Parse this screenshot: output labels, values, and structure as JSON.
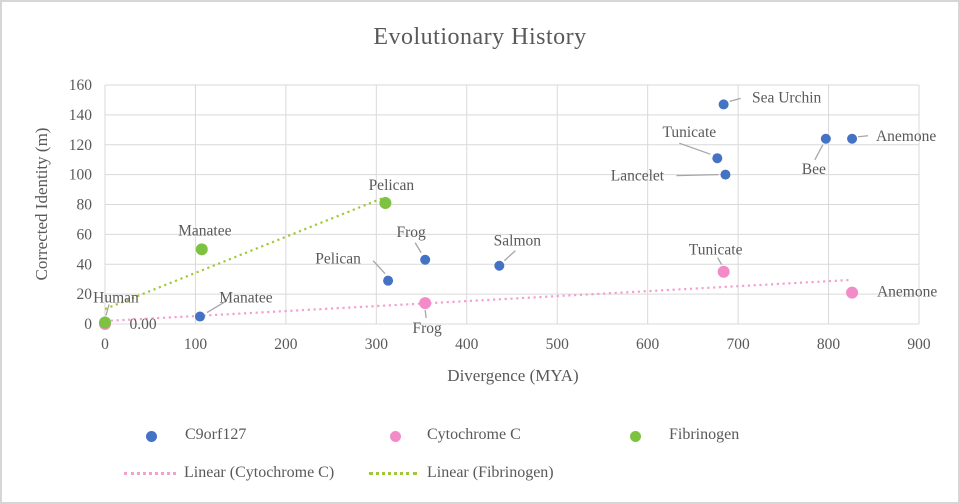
{
  "styles": {
    "text_color": "#595959",
    "grid_color": "#d9d9d9",
    "leader_color": "#a6a6a6",
    "background": "#ffffff",
    "frame_border": "#d6d6d6"
  },
  "chart_data": {
    "type": "scatter",
    "title": "Evolutionary History",
    "xlabel": "Divergence (MYA)",
    "ylabel": "Corrected Identity (m)",
    "xlim": [
      0,
      900
    ],
    "ylim": [
      0,
      160
    ],
    "xticks": [
      0,
      100,
      200,
      300,
      400,
      500,
      600,
      700,
      800,
      900
    ],
    "yticks": [
      0,
      20,
      40,
      60,
      80,
      100,
      120,
      140,
      160
    ],
    "grid": true,
    "legend_position": "bottom",
    "series": [
      {
        "name": "C9orf127",
        "color": "#4472c4",
        "marker_radius": 5,
        "points": [
          {
            "x": 105,
            "y": 5,
            "label": "Manatee",
            "label_dx": 46,
            "label_dy": -19,
            "lead": [
              7,
              -4,
              27,
              -16
            ]
          },
          {
            "x": 313,
            "y": 29,
            "label": "Pelican",
            "label_dx": -50,
            "label_dy": -22,
            "lead": [
              -15,
              -20,
              -3,
              -7
            ]
          },
          {
            "x": 354,
            "y": 43,
            "label": "Frog",
            "label_dx": -14,
            "label_dy": -28,
            "lead": [
              -10,
              -17,
              -4,
              -7
            ]
          },
          {
            "x": 436,
            "y": 39,
            "label": "Salmon",
            "label_dx": 18,
            "label_dy": -25,
            "lead": [
              5,
              -5,
              16,
              -15
            ]
          },
          {
            "x": 686,
            "y": 100,
            "label": "Lancelet",
            "label_dx": -88,
            "label_dy": 1,
            "lead": [
              -7,
              0,
              -49,
              1
            ]
          },
          {
            "x": 677,
            "y": 111,
            "label": "Tunicate",
            "label_dx": -28,
            "label_dy": -26,
            "lead": [
              -7,
              -4,
              -38,
              -15
            ]
          },
          {
            "x": 684,
            "y": 147,
            "label": "Sea Urchin",
            "label_dx": 63,
            "label_dy": -7,
            "lead": [
              6,
              -3,
              17,
              -6
            ]
          },
          {
            "x": 797,
            "y": 124,
            "label": "Bee",
            "label_dx": -12,
            "label_dy": 30,
            "lead": [
              -3,
              6,
              -11,
              21
            ]
          },
          {
            "x": 826,
            "y": 124,
            "label": "Anemone",
            "label_dx": 54,
            "label_dy": -3,
            "lead": [
              6,
              -2,
              16,
              -3
            ]
          }
        ]
      },
      {
        "name": "Cytochrome C",
        "color": "#f28cc8",
        "marker_radius": 6,
        "points": [
          {
            "x": 0,
            "y": 0,
            "label": "0.00",
            "label_dx": 38,
            "label_dy": 0,
            "lead": null
          },
          {
            "x": 354,
            "y": 14,
            "label": "Frog",
            "label_dx": 2,
            "label_dy": 25,
            "lead": [
              0,
              7,
              1,
              15
            ]
          },
          {
            "x": 684,
            "y": 35,
            "label": "Tunicate",
            "label_dx": -8,
            "label_dy": -22,
            "lead": [
              -2,
              -7,
              -6,
              -14
            ]
          },
          {
            "x": 826,
            "y": 21,
            "label": "Anemone",
            "label_dx": 55,
            "label_dy": -1,
            "lead": null
          }
        ]
      },
      {
        "name": "Fibrinogen",
        "color": "#7ec242",
        "marker_radius": 6,
        "points": [
          {
            "x": 0,
            "y": 1,
            "label": "Human",
            "label_dx": 11,
            "label_dy": -25,
            "lead": [
              1,
              -7,
              4,
              -18
            ]
          },
          {
            "x": 107,
            "y": 50,
            "label": "Manatee",
            "label_dx": 3,
            "label_dy": -19,
            "lead": null
          },
          {
            "x": 310,
            "y": 81,
            "label": "Pelican",
            "label_dx": 6,
            "label_dy": -18,
            "lead": null
          }
        ]
      }
    ],
    "trendlines": [
      {
        "name": "Linear (Cytochrome C)",
        "color": "#f4a0cd",
        "x1": 0,
        "y1": 2,
        "x2": 825,
        "y2": 29.5
      },
      {
        "name": "Linear (Fibrinogen)",
        "color": "#a2c83a",
        "x1": 0,
        "y1": 10,
        "x2": 310,
        "y2": 85
      }
    ]
  },
  "legend": {
    "items": [
      {
        "label": "C9orf127",
        "marker": "dot",
        "color": "#4472c4"
      },
      {
        "label": "Cytochrome C",
        "marker": "dot",
        "color": "#f28cc8"
      },
      {
        "label": "Fibrinogen",
        "marker": "dot",
        "color": "#7ec242"
      },
      {
        "label": "Linear  (Cytochrome C)",
        "marker": "dotted-line",
        "color": "#f4a0cd"
      },
      {
        "label": "Linear  (Fibrinogen)",
        "marker": "dotted-line",
        "color": "#a2c83a"
      }
    ]
  }
}
